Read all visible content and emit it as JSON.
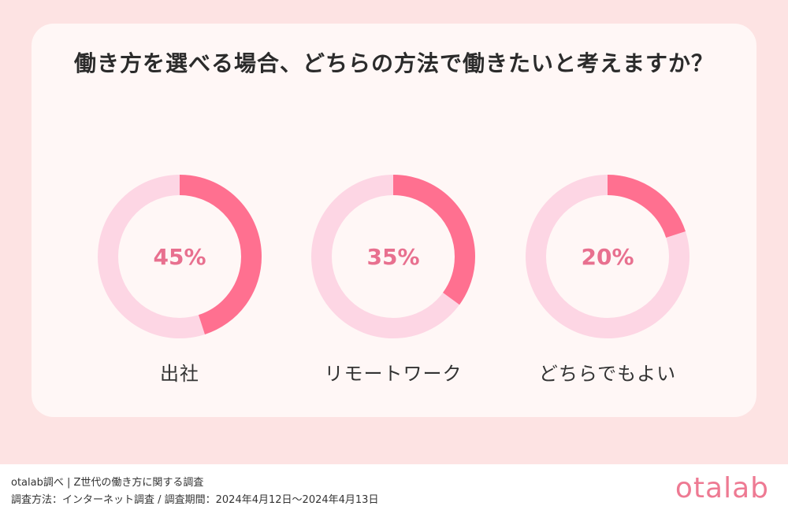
{
  "colors": {
    "background": "#fde3e3",
    "card": "#fff7f6",
    "accent": "#ff7090",
    "track": "#fdd6e4",
    "percent_text": "#e8708f",
    "logo": "#ee7a93"
  },
  "chart_data": {
    "type": "pie",
    "title": "働き方を選べる場合、どちらの方法で働きたいと考えますか？",
    "categories": [
      "出社",
      "リモートワーク",
      "どちらでもよい"
    ],
    "values": [
      45,
      35,
      20
    ],
    "value_labels": [
      "45%",
      "35%",
      "20%"
    ],
    "unit": "%"
  },
  "footer": {
    "source_line1": "otalab調べ | Z世代の働き方に関する調査",
    "source_line2": "調査方法：インターネット調査 / 調査期間：2024年4月12日〜2024年4月13日",
    "logo": "otalab"
  }
}
